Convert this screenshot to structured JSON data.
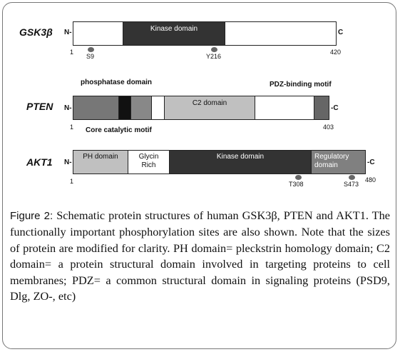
{
  "figure": {
    "proteins": [
      {
        "name": "GSK3β",
        "n_term": "N-",
        "c_term": "C",
        "start": "1",
        "end": "420",
        "domains": [
          {
            "label": "Kinase domain",
            "color": "#333333"
          }
        ],
        "sites": [
          "S9",
          "Y216"
        ]
      },
      {
        "name": "PTEN",
        "n_term": "N-",
        "c_term": "-C",
        "start": "1",
        "end": "403",
        "domains": [
          {
            "label": "C2 domain",
            "color": "#c0c0c0"
          }
        ],
        "callouts": [
          "phosphatase domain",
          "PDZ-binding motif",
          "Core catalytic motif"
        ]
      },
      {
        "name": "AKT1",
        "n_term": "N-",
        "c_term": "-C",
        "start": "1",
        "end": "480",
        "domains": [
          {
            "label": "PH domain",
            "color": "#c0c0c0"
          },
          {
            "label": "Glycin Rich",
            "color": "#ffffff"
          },
          {
            "label": "Kinase domain",
            "color": "#333333"
          },
          {
            "label": "Regulatory domain",
            "color": "#808080"
          }
        ],
        "sites": [
          "T308",
          "S473"
        ]
      }
    ]
  },
  "caption": {
    "label": "Figure 2:",
    "text": " Schematic protein structures of human GSK3β, PTEN and AKT1. The functionally important phosphorylation sites are also shown. Note that the sizes of protein are modified for clarity. PH domain= pleckstrin homology domain; C2 domain= a protein structural domain involved in targeting proteins to cell membranes; PDZ= a common structural domain in signaling proteins (PSD9, Dlg, ZO-, etc)"
  }
}
